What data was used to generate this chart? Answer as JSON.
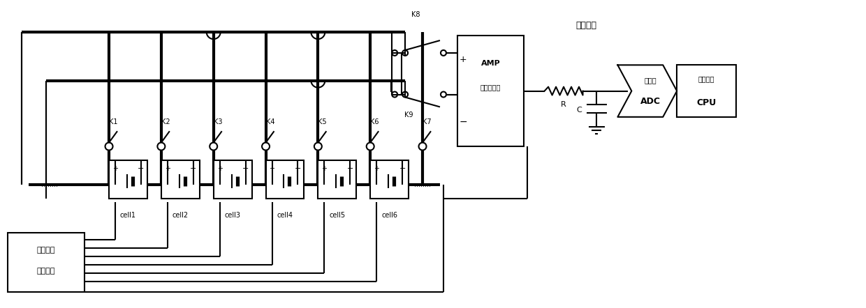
{
  "fig_width": 12.4,
  "fig_height": 4.42,
  "dpi": 100,
  "bg_color": "#ffffff",
  "line_color": "#000000",
  "lw": 1.5,
  "cells": [
    "cell1",
    "cell2",
    "cell3",
    "cell4",
    "cell5",
    "cell6"
  ],
  "switches_top": [
    "K1",
    "K2",
    "K3",
    "K4",
    "K5",
    "K6",
    "K7"
  ],
  "amp_label_1": "AMP",
  "amp_label_2": "运算放大器",
  "filter_label": "滤波电路",
  "adc_label_1": "高精度",
  "adc_label_2": "ADC",
  "cpu_label_1": "微处理器",
  "cpu_label_2": "CPU",
  "logic_label_1": "分时逻辑",
  "logic_label_2": "控制电路",
  "R_label": "R",
  "C_label": "C",
  "K8_label": "K8",
  "K9_label": "K9",
  "plus_label": "+",
  "minus_label": "-"
}
